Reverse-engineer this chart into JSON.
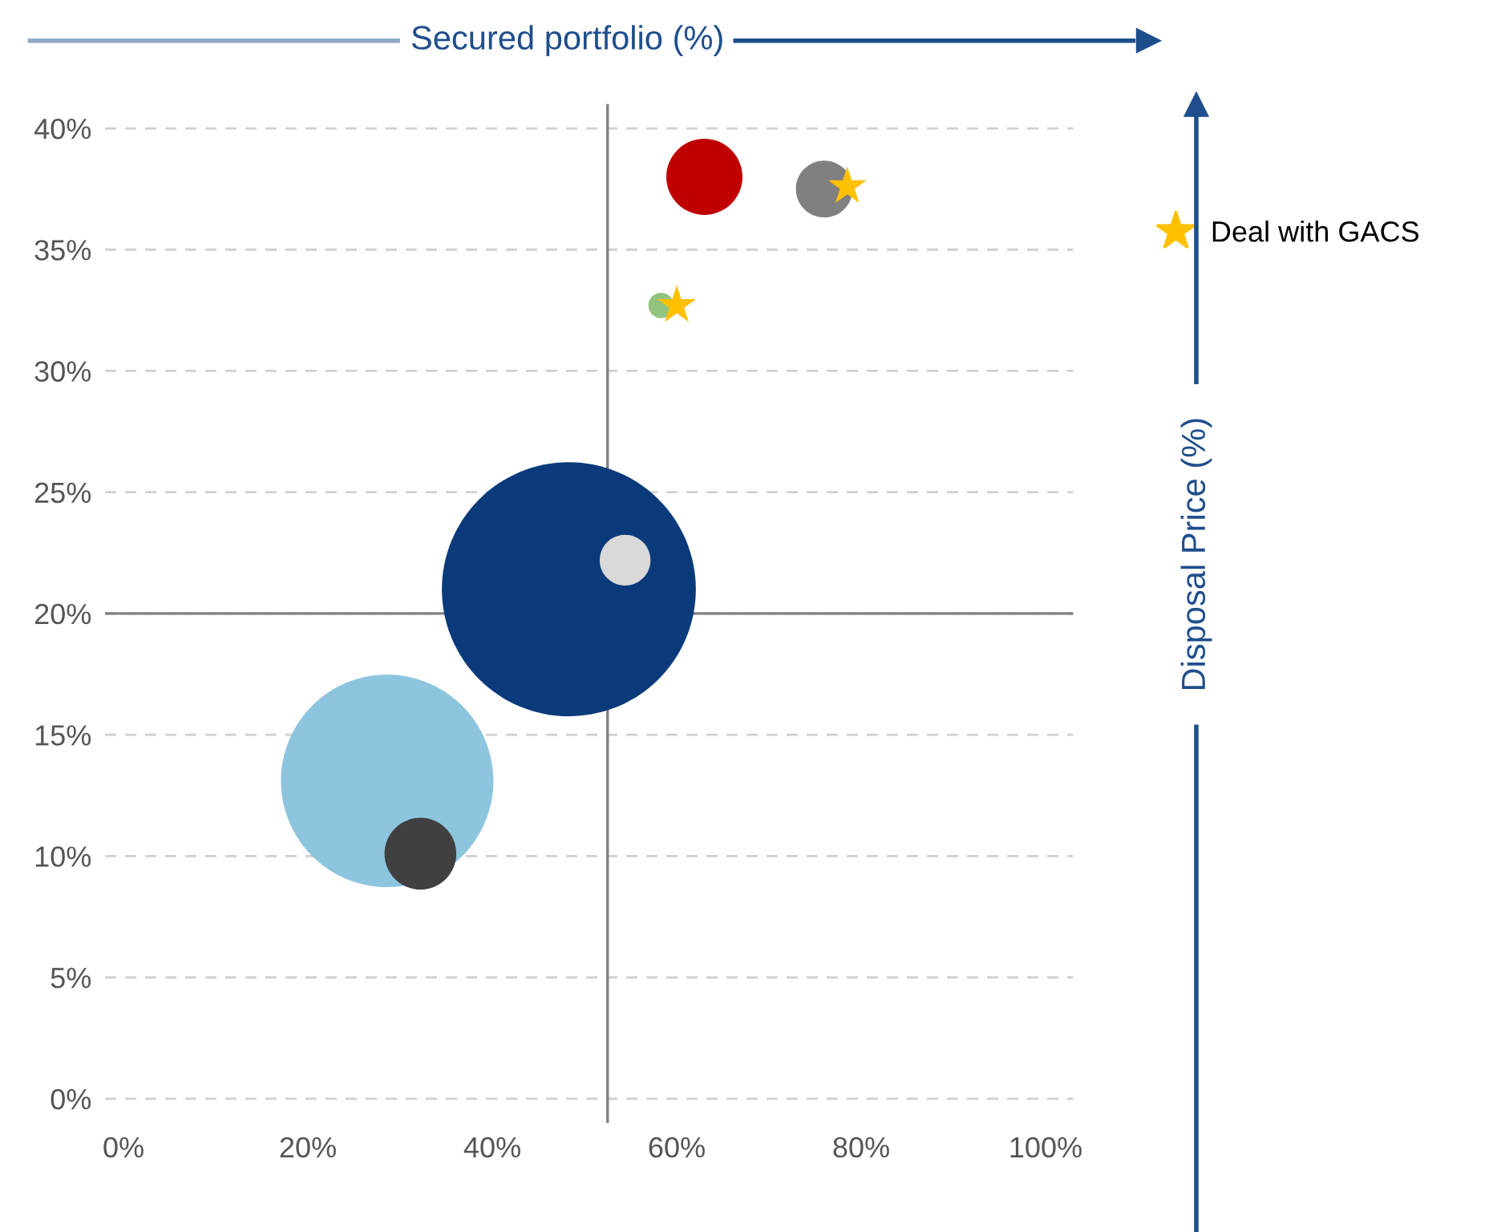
{
  "chart_data": {
    "type": "bubble",
    "xlabel": "Secured portfolio (%)",
    "ylabel": "Disposal Price (%)",
    "xlim": [
      -2,
      103
    ],
    "ylim": [
      -1,
      41
    ],
    "xticks": [
      {
        "value": 0,
        "label": "0%"
      },
      {
        "value": 20,
        "label": "20%"
      },
      {
        "value": 40,
        "label": "40%"
      },
      {
        "value": 60,
        "label": "60%"
      },
      {
        "value": 80,
        "label": "80%"
      },
      {
        "value": 100,
        "label": "100%"
      }
    ],
    "yticks": [
      {
        "value": 0,
        "label": "0%"
      },
      {
        "value": 5,
        "label": "5%"
      },
      {
        "value": 10,
        "label": "10%"
      },
      {
        "value": 15,
        "label": "15%"
      },
      {
        "value": 20,
        "label": "20%"
      },
      {
        "value": 25,
        "label": "25%"
      },
      {
        "value": 30,
        "label": "30%"
      },
      {
        "value": 35,
        "label": "35%"
      },
      {
        "value": 40,
        "label": "40%"
      }
    ],
    "grid": "y",
    "legend": "right",
    "ref_lines": [
      {
        "axis": "x",
        "value": 52.5,
        "color": "#808080"
      },
      {
        "axis": "y",
        "value": 20,
        "color": "#808080"
      }
    ],
    "series": [
      {
        "x": [
          48.3,
          28.6,
          63,
          76,
          58.3,
          54.4,
          32.2
        ],
        "values": [
          21.0,
          13.1,
          38.0,
          37.5,
          32.7,
          22.2,
          10.1
        ],
        "sizes": [
          1,
          0.7,
          0.09,
          0.05,
          0.01,
          0.04,
          0.08
        ],
        "colors": [
          "#0a3a7a",
          "#8ec5de",
          "#c00000",
          "#808080",
          "#92c47d",
          "#d9d9d9",
          "#404040"
        ]
      },
      {
        "type": "scatter",
        "name": "Deal with GACS",
        "color": "#ffc000",
        "marker": "star",
        "x": [
          78.5,
          60
        ],
        "values": [
          37.6,
          32.7
        ]
      }
    ]
  }
}
